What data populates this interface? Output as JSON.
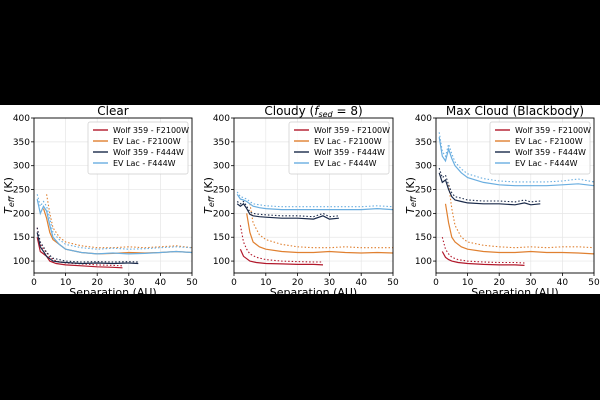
{
  "chart_data": [
    {
      "type": "line",
      "title": "Clear",
      "xlabel": "Separation (AU)",
      "ylabel": "T_eff (K)",
      "xlim": [
        0,
        50
      ],
      "ylim": [
        75,
        400
      ],
      "xticks": [
        "0",
        "10",
        "20",
        "30",
        "40",
        "50"
      ],
      "yticks": [
        "100",
        "150",
        "200",
        "250",
        "300",
        "350",
        "400"
      ],
      "grid": true,
      "legend_position": "top-right",
      "series": [
        {
          "name": "Wolf 359 - F2100W",
          "color": "#b2182b",
          "style": "solid",
          "x": [
            1,
            2,
            3,
            4,
            5,
            7,
            10,
            15,
            20,
            25,
            28
          ],
          "y": [
            150,
            120,
            115,
            110,
            100,
            95,
            92,
            90,
            88,
            87,
            86
          ]
        },
        {
          "name": "Wolf 359 - F2100W",
          "color": "#b2182b",
          "style": "dotted",
          "x": [
            1,
            2,
            3,
            4,
            5,
            7,
            10,
            15,
            20,
            25,
            28
          ],
          "y": [
            170,
            135,
            125,
            118,
            108,
            100,
            96,
            94,
            92,
            91,
            90
          ]
        },
        {
          "name": "EV Lac - F2100W",
          "color": "#e08030",
          "style": "solid",
          "x": [
            3,
            4,
            5,
            6,
            8,
            10,
            15,
            20,
            25,
            30,
            35,
            40,
            45,
            50
          ],
          "y": [
            210,
            190,
            160,
            145,
            135,
            125,
            118,
            115,
            116,
            118,
            117,
            118,
            120,
            118
          ]
        },
        {
          "name": "EV Lac - F2100W",
          "color": "#e08030",
          "style": "dotted",
          "x": [
            4,
            5,
            6,
            8,
            10,
            15,
            20,
            25,
            30,
            35,
            40,
            45,
            50
          ],
          "y": [
            240,
            200,
            170,
            150,
            140,
            132,
            128,
            128,
            130,
            128,
            130,
            132,
            128
          ]
        },
        {
          "name": "Wolf 359 - F444W",
          "color": "#1a2a4a",
          "style": "solid",
          "x": [
            1,
            2,
            3,
            4,
            5,
            6,
            8,
            10,
            15,
            20,
            25,
            30,
            33
          ],
          "y": [
            160,
            130,
            120,
            110,
            105,
            100,
            98,
            97,
            95,
            96,
            95,
            96,
            95
          ]
        },
        {
          "name": "Wolf 359 - F444W",
          "color": "#1a2a4a",
          "style": "dotted",
          "x": [
            1,
            2,
            3,
            4,
            5,
            6,
            8,
            10,
            15,
            20,
            25,
            30,
            33
          ],
          "y": [
            170,
            140,
            130,
            118,
            112,
            106,
            103,
            100,
            98,
            99,
            98,
            99,
            98
          ]
        },
        {
          "name": "EV Lac - F444W",
          "color": "#6aaee0",
          "style": "solid",
          "x": [
            1,
            2,
            3,
            4,
            5,
            6,
            8,
            10,
            15,
            20,
            25,
            30,
            35,
            40,
            45,
            50
          ],
          "y": [
            230,
            200,
            215,
            205,
            175,
            150,
            135,
            125,
            118,
            115,
            117,
            115,
            116,
            118,
            120,
            118
          ]
        },
        {
          "name": "EV Lac - F444W",
          "color": "#6aaee0",
          "style": "dotted",
          "x": [
            1,
            2,
            3,
            4,
            5,
            6,
            8,
            10,
            15,
            20,
            25,
            30,
            35,
            40,
            45,
            50
          ],
          "y": [
            240,
            215,
            225,
            215,
            190,
            160,
            145,
            135,
            128,
            125,
            127,
            125,
            126,
            128,
            130,
            128
          ]
        }
      ]
    },
    {
      "type": "line",
      "title": "Cloudy (f_sed = 8)",
      "xlabel": "Separation (AU)",
      "ylabel": "T_eff (K)",
      "xlim": [
        0,
        50
      ],
      "ylim": [
        75,
        400
      ],
      "xticks": [
        "0",
        "10",
        "20",
        "30",
        "40",
        "50"
      ],
      "yticks": [
        "100",
        "150",
        "200",
        "250",
        "300",
        "350",
        "400"
      ],
      "grid": true,
      "legend_position": "top-right",
      "series": [
        {
          "name": "Wolf 359 - F2100W",
          "color": "#b2182b",
          "style": "solid",
          "x": [
            2,
            3,
            4,
            5,
            7,
            10,
            15,
            20,
            25,
            28
          ],
          "y": [
            125,
            110,
            105,
            100,
            97,
            95,
            94,
            93,
            93,
            92
          ]
        },
        {
          "name": "Wolf 359 - F2100W",
          "color": "#b2182b",
          "style": "dotted",
          "x": [
            2,
            3,
            4,
            5,
            7,
            10,
            15,
            20,
            25,
            28
          ],
          "y": [
            175,
            140,
            125,
            115,
            108,
            103,
            100,
            99,
            98,
            98
          ]
        },
        {
          "name": "EV Lac - F2100W",
          "color": "#e08030",
          "style": "solid",
          "x": [
            4,
            5,
            6,
            8,
            10,
            15,
            20,
            25,
            30,
            35,
            40,
            45,
            50
          ],
          "y": [
            200,
            160,
            140,
            130,
            125,
            120,
            118,
            118,
            120,
            118,
            117,
            118,
            117
          ]
        },
        {
          "name": "EV Lac - F2100W",
          "color": "#e08030",
          "style": "dotted",
          "x": [
            5,
            6,
            8,
            10,
            15,
            20,
            25,
            30,
            35,
            40,
            45,
            50
          ],
          "y": [
            220,
            180,
            155,
            145,
            135,
            130,
            128,
            128,
            130,
            128,
            128,
            128
          ]
        },
        {
          "name": "Wolf 359 - F444W",
          "color": "#1a2a4a",
          "style": "solid",
          "x": [
            1,
            2,
            3,
            4,
            5,
            6,
            8,
            10,
            15,
            20,
            25,
            28,
            30,
            33
          ],
          "y": [
            220,
            215,
            220,
            210,
            198,
            195,
            193,
            192,
            190,
            190,
            188,
            195,
            188,
            190
          ]
        },
        {
          "name": "Wolf 359 - F444W",
          "color": "#1a2a4a",
          "style": "dotted",
          "x": [
            1,
            2,
            3,
            4,
            5,
            6,
            8,
            10,
            15,
            20,
            25,
            28,
            30,
            33
          ],
          "y": [
            225,
            220,
            225,
            215,
            203,
            200,
            198,
            197,
            195,
            195,
            193,
            200,
            193,
            195
          ]
        },
        {
          "name": "EV Lac - F444W",
          "color": "#6aaee0",
          "style": "solid",
          "x": [
            1,
            2,
            3,
            4,
            5,
            6,
            8,
            10,
            15,
            20,
            25,
            30,
            35,
            40,
            45,
            50
          ],
          "y": [
            240,
            230,
            228,
            225,
            220,
            215,
            212,
            210,
            208,
            208,
            208,
            208,
            208,
            208,
            210,
            208
          ]
        },
        {
          "name": "EV Lac - F444W",
          "color": "#6aaee0",
          "style": "dotted",
          "x": [
            1,
            2,
            3,
            4,
            5,
            6,
            8,
            10,
            15,
            20,
            25,
            30,
            35,
            40,
            45,
            50
          ],
          "y": [
            245,
            235,
            233,
            230,
            225,
            220,
            218,
            216,
            214,
            214,
            214,
            214,
            214,
            214,
            216,
            214
          ]
        }
      ]
    },
    {
      "type": "line",
      "title": "Max Cloud (Blackbody)",
      "xlabel": "Separation (AU)",
      "ylabel": "T_eff (K)",
      "xlim": [
        0,
        50
      ],
      "ylim": [
        75,
        400
      ],
      "xticks": [
        "0",
        "10",
        "20",
        "30",
        "40",
        "50"
      ],
      "yticks": [
        "100",
        "150",
        "200",
        "250",
        "300",
        "350",
        "400"
      ],
      "grid": true,
      "legend_position": "top-right",
      "series": [
        {
          "name": "Wolf 359 - F2100W",
          "color": "#b2182b",
          "style": "solid",
          "x": [
            2,
            3,
            4,
            5,
            7,
            10,
            15,
            20,
            25,
            28
          ],
          "y": [
            120,
            108,
            103,
            100,
            97,
            95,
            93,
            92,
            92,
            91
          ]
        },
        {
          "name": "Wolf 359 - F2100W",
          "color": "#b2182b",
          "style": "dotted",
          "x": [
            2,
            3,
            4,
            5,
            7,
            10,
            15,
            20,
            25,
            28
          ],
          "y": [
            150,
            125,
            115,
            108,
            103,
            100,
            98,
            97,
            97,
            96
          ]
        },
        {
          "name": "EV Lac - F2100W",
          "color": "#e08030",
          "style": "solid",
          "x": [
            3,
            4,
            5,
            6,
            8,
            10,
            15,
            20,
            25,
            30,
            35,
            40,
            45,
            50
          ],
          "y": [
            220,
            180,
            150,
            140,
            130,
            125,
            120,
            118,
            118,
            120,
            118,
            118,
            117,
            115
          ]
        },
        {
          "name": "EV Lac - F2100W",
          "color": "#e08030",
          "style": "dotted",
          "x": [
            4,
            5,
            6,
            8,
            10,
            15,
            20,
            25,
            30,
            35,
            40,
            45,
            50
          ],
          "y": [
            260,
            210,
            175,
            150,
            140,
            133,
            130,
            128,
            130,
            128,
            130,
            130,
            128
          ]
        },
        {
          "name": "Wolf 359 - F444W",
          "color": "#1a2a4a",
          "style": "solid",
          "x": [
            1,
            2,
            3,
            4,
            5,
            6,
            8,
            10,
            15,
            20,
            25,
            28,
            30,
            33
          ],
          "y": [
            285,
            265,
            270,
            250,
            235,
            228,
            225,
            222,
            220,
            220,
            218,
            222,
            218,
            220
          ]
        },
        {
          "name": "Wolf 359 - F444W",
          "color": "#1a2a4a",
          "style": "dotted",
          "x": [
            1,
            2,
            3,
            4,
            5,
            6,
            8,
            10,
            15,
            20,
            25,
            28,
            30,
            33
          ],
          "y": [
            295,
            275,
            280,
            260,
            243,
            235,
            232,
            228,
            226,
            226,
            224,
            228,
            224,
            226
          ]
        },
        {
          "name": "EV Lac - F444W",
          "color": "#6aaee0",
          "style": "solid",
          "x": [
            1,
            2,
            3,
            4,
            5,
            6,
            8,
            10,
            15,
            20,
            25,
            30,
            35,
            40,
            45,
            50
          ],
          "y": [
            360,
            320,
            310,
            335,
            315,
            300,
            285,
            275,
            265,
            260,
            258,
            258,
            258,
            260,
            262,
            258
          ]
        },
        {
          "name": "EV Lac - F444W",
          "color": "#6aaee0",
          "style": "dotted",
          "x": [
            1,
            2,
            3,
            4,
            5,
            6,
            8,
            10,
            15,
            20,
            25,
            30,
            35,
            40,
            45,
            50
          ],
          "y": [
            370,
            330,
            320,
            345,
            325,
            308,
            293,
            283,
            273,
            268,
            266,
            266,
            266,
            268,
            272,
            266
          ]
        }
      ]
    }
  ]
}
